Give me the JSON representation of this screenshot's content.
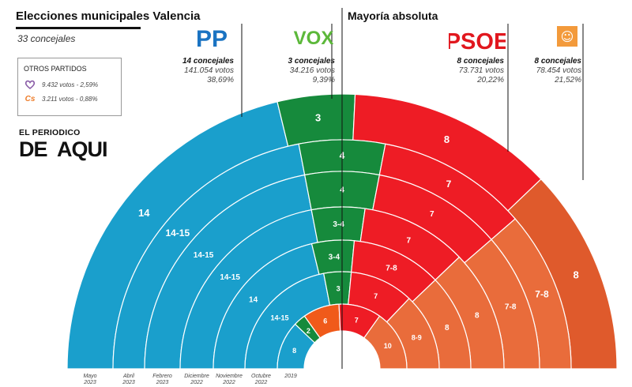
{
  "header": {
    "title": "Elecciones municipales Valencia",
    "subtitle": "33 concejales",
    "majority_label": "Mayoría absoluta"
  },
  "others": {
    "title": "OTROS PARTIDOS",
    "rows": [
      {
        "name": "heart-party",
        "text": "9.432 votos - 2,59%",
        "color": "#8b5ea8"
      },
      {
        "name": "Cs",
        "text": "3.211 votos - 0,88%",
        "color": "#ee7d2b"
      }
    ]
  },
  "logo": {
    "top": "EL PERIODICO",
    "bottom_de": "DE",
    "bottom_aqui": "AQUI"
  },
  "parties": {
    "pp": {
      "logo_text": "PP",
      "seats": "14 concejales",
      "votes": "141.054 votos",
      "pct": "38,69%",
      "color": "#1a9fcc"
    },
    "vox": {
      "logo_text": "VOX",
      "seats": "3 concejales",
      "votes": "34.216 votos",
      "pct": "9,39%",
      "color": "#168a3c"
    },
    "psoe": {
      "logo_text": "PSOE",
      "seats": "8 concejales",
      "votes": "73.731 votos",
      "pct": "20,22%",
      "color": "#ee1c25"
    },
    "compromis": {
      "logo_text": "☺",
      "seats": "8 concejales",
      "votes": "78.454 votos",
      "pct": "21,52%",
      "color": "#e0552b"
    }
  },
  "colors": {
    "pp": "#1a9fcc",
    "vox": "#168a3c",
    "cs": "#f05a1a",
    "psoe": "#ee1c25",
    "compromis": "#df5a2c",
    "compromis_light": "#e96c3b"
  },
  "chart_data": {
    "type": "semicircle-parliament",
    "total_seats": 33,
    "majority": 17,
    "rings": [
      {
        "label": "Mayo",
        "year": "2023",
        "segments": [
          {
            "party": "PP",
            "value": 14,
            "label": "14"
          },
          {
            "party": "Vox",
            "value": 3,
            "label": "3"
          },
          {
            "party": "PSOE",
            "value": 8,
            "label": "8"
          },
          {
            "party": "Compromís",
            "value": 8,
            "label": "8"
          }
        ]
      },
      {
        "label": "Abril",
        "year": "2023",
        "segments": [
          {
            "party": "PP",
            "value": 14.5,
            "label": "14-15"
          },
          {
            "party": "Vox",
            "value": 4,
            "label": "4"
          },
          {
            "party": "PSOE",
            "value": 7,
            "label": "7"
          },
          {
            "party": "Compromís",
            "value": 7.5,
            "label": "7-8"
          }
        ]
      },
      {
        "label": "Febrero",
        "year": "2023",
        "segments": [
          {
            "party": "PP",
            "value": 14.5,
            "label": "14-15"
          },
          {
            "party": "Vox",
            "value": 4,
            "label": "4"
          },
          {
            "party": "PSOE",
            "value": 7,
            "label": "7"
          },
          {
            "party": "Compromís",
            "value": 7.5,
            "label": "7-8"
          }
        ]
      },
      {
        "label": "Diciembre",
        "year": "2022",
        "segments": [
          {
            "party": "PP",
            "value": 14.5,
            "label": "14-15"
          },
          {
            "party": "Vox",
            "value": 3.5,
            "label": "3-4"
          },
          {
            "party": "PSOE",
            "value": 7,
            "label": "7"
          },
          {
            "party": "Compromís",
            "value": 8,
            "label": "8"
          }
        ]
      },
      {
        "label": "Noviembre",
        "year": "2022",
        "segments": [
          {
            "party": "PP",
            "value": 14,
            "label": "14"
          },
          {
            "party": "Vox",
            "value": 3.5,
            "label": "3-4"
          },
          {
            "party": "PSOE",
            "value": 7.5,
            "label": "7-8"
          },
          {
            "party": "Compromís",
            "value": 8,
            "label": "8"
          }
        ]
      },
      {
        "label": "Octubre",
        "year": "2022",
        "segments": [
          {
            "party": "PP",
            "value": 14.5,
            "label": "14-15"
          },
          {
            "party": "Vox",
            "value": 3,
            "label": "3"
          },
          {
            "party": "PSOE",
            "value": 7,
            "label": "7"
          },
          {
            "party": "Compromís",
            "value": 8.5,
            "label": "8-9"
          }
        ]
      },
      {
        "label": "",
        "year": "2019",
        "segments": [
          {
            "party": "PP",
            "value": 8,
            "label": "8"
          },
          {
            "party": "Vox",
            "value": 2,
            "label": "2"
          },
          {
            "party": "Cs",
            "value": 6,
            "label": "6"
          },
          {
            "party": "PSOE",
            "value": 7,
            "label": "7"
          },
          {
            "party": "Compromís",
            "value": 10,
            "label": "10"
          }
        ]
      }
    ]
  }
}
